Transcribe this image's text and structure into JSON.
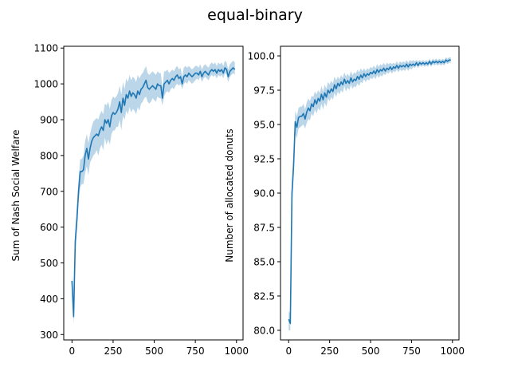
{
  "figure": {
    "title": "equal-binary"
  },
  "colors": {
    "line": "#1f77b4",
    "band": "#1f77b4",
    "axes": "#000000",
    "background": "#ffffff"
  },
  "chart_data": [
    {
      "type": "line",
      "title": "",
      "xlabel": "",
      "ylabel": "Sum of Nash Social Welfare",
      "xlim": [
        -50,
        1040
      ],
      "ylim": [
        285,
        1105
      ],
      "xticks": [
        0,
        250,
        500,
        750,
        1000
      ],
      "xtick_labels": [
        "0",
        "250",
        "500",
        "750",
        "1000"
      ],
      "yticks": [
        300,
        400,
        500,
        600,
        700,
        800,
        900,
        1000,
        1100
      ],
      "ytick_labels": [
        "300",
        "400",
        "500",
        "600",
        "700",
        "800",
        "900",
        "1000",
        "1100"
      ],
      "grid": false,
      "legend": "none",
      "series": [
        {
          "x": [
            0,
            10,
            20,
            30,
            40,
            50,
            60,
            70,
            80,
            90,
            100,
            110,
            120,
            130,
            140,
            150,
            160,
            170,
            180,
            190,
            200,
            210,
            220,
            230,
            240,
            250,
            260,
            270,
            280,
            290,
            300,
            310,
            320,
            330,
            340,
            350,
            360,
            370,
            380,
            390,
            400,
            410,
            420,
            430,
            440,
            450,
            460,
            470,
            480,
            490,
            500,
            510,
            520,
            530,
            540,
            550,
            560,
            570,
            580,
            590,
            600,
            610,
            620,
            630,
            640,
            650,
            660,
            670,
            680,
            690,
            700,
            710,
            720,
            730,
            740,
            750,
            760,
            770,
            780,
            790,
            800,
            810,
            820,
            830,
            840,
            850,
            860,
            870,
            880,
            890,
            900,
            910,
            920,
            930,
            940,
            950,
            960,
            970,
            980,
            990
          ],
          "y": [
            450,
            350,
            560,
            620,
            700,
            755,
            755,
            760,
            800,
            820,
            790,
            820,
            840,
            850,
            855,
            860,
            855,
            870,
            880,
            870,
            900,
            890,
            900,
            880,
            910,
            920,
            915,
            920,
            930,
            950,
            920,
            960,
            940,
            970,
            960,
            980,
            965,
            975,
            970,
            960,
            980,
            970,
            985,
            990,
            1000,
            1010,
            990,
            985,
            990,
            995,
            990,
            985,
            1000,
            995,
            995,
            960,
            1000,
            1005,
            1010,
            1000,
            1010,
            1015,
            1010,
            1020,
            1025,
            1015,
            1020,
            1000,
            1020,
            1025,
            1020,
            1030,
            1025,
            1020,
            1025,
            1030,
            1030,
            1025,
            1035,
            1020,
            1030,
            1035,
            1030,
            1025,
            1035,
            1040,
            1035,
            1040,
            1030,
            1040,
            1035,
            1040,
            1030,
            1045,
            1040,
            1020,
            1035,
            1040,
            1045,
            1040
          ],
          "lower": [
            410,
            330,
            520,
            590,
            670,
            710,
            720,
            720,
            750,
            770,
            745,
            780,
            790,
            800,
            805,
            815,
            800,
            820,
            830,
            815,
            850,
            830,
            845,
            830,
            860,
            870,
            870,
            880,
            880,
            900,
            870,
            910,
            900,
            925,
            915,
            935,
            920,
            930,
            925,
            915,
            935,
            925,
            945,
            950,
            960,
            965,
            950,
            945,
            950,
            960,
            955,
            950,
            965,
            960,
            960,
            940,
            965,
            975,
            980,
            975,
            985,
            990,
            985,
            995,
            1000,
            995,
            1000,
            985,
            1000,
            1005,
            1000,
            1010,
            1005,
            1000,
            1005,
            1010,
            1015,
            1010,
            1020,
            1005,
            1015,
            1020,
            1015,
            1010,
            1020,
            1025,
            1020,
            1025,
            1015,
            1025,
            1020,
            1025,
            1015,
            1030,
            1025,
            1005,
            1020,
            1025,
            1030,
            1025
          ],
          "upper": [
            470,
            380,
            600,
            660,
            730,
            790,
            790,
            800,
            840,
            860,
            835,
            860,
            880,
            895,
            900,
            905,
            900,
            915,
            925,
            915,
            945,
            940,
            950,
            930,
            955,
            965,
            960,
            965,
            975,
            995,
            970,
            1005,
            985,
            1015,
            1005,
            1025,
            1010,
            1020,
            1015,
            1005,
            1025,
            1015,
            1025,
            1030,
            1040,
            1050,
            1030,
            1025,
            1030,
            1035,
            1030,
            1025,
            1035,
            1030,
            1030,
            990,
            1035,
            1035,
            1040,
            1030,
            1035,
            1040,
            1035,
            1045,
            1050,
            1040,
            1045,
            1020,
            1045,
            1050,
            1045,
            1050,
            1045,
            1040,
            1045,
            1050,
            1050,
            1045,
            1055,
            1040,
            1050,
            1055,
            1050,
            1045,
            1055,
            1060,
            1055,
            1060,
            1050,
            1060,
            1055,
            1060,
            1050,
            1065,
            1060,
            1040,
            1055,
            1060,
            1065,
            1060
          ]
        }
      ]
    },
    {
      "type": "line",
      "title": "",
      "xlabel": "",
      "ylabel": "Number of allocated donuts",
      "xlim": [
        -50,
        1040
      ],
      "ylim": [
        79.3,
        100.7
      ],
      "xticks": [
        0,
        250,
        500,
        750,
        1000
      ],
      "xtick_labels": [
        "0",
        "250",
        "500",
        "750",
        "1000"
      ],
      "yticks": [
        80.0,
        82.5,
        85.0,
        87.5,
        90.0,
        92.5,
        95.0,
        97.5,
        100.0
      ],
      "ytick_labels": [
        "80.0",
        "82.5",
        "85.0",
        "87.5",
        "90.0",
        "92.5",
        "95.0",
        "97.5",
        "100.0"
      ],
      "grid": false,
      "legend": "none",
      "series": [
        {
          "x": [
            0,
            10,
            20,
            30,
            40,
            50,
            60,
            70,
            80,
            90,
            100,
            110,
            120,
            130,
            140,
            150,
            160,
            170,
            180,
            190,
            200,
            210,
            220,
            230,
            240,
            250,
            260,
            270,
            280,
            290,
            300,
            310,
            320,
            330,
            340,
            350,
            360,
            370,
            380,
            390,
            400,
            410,
            420,
            430,
            440,
            450,
            460,
            470,
            480,
            490,
            500,
            510,
            520,
            530,
            540,
            550,
            560,
            570,
            580,
            590,
            600,
            610,
            620,
            630,
            640,
            650,
            660,
            670,
            680,
            690,
            700,
            710,
            720,
            730,
            740,
            750,
            760,
            770,
            780,
            790,
            800,
            810,
            820,
            830,
            840,
            850,
            860,
            870,
            880,
            890,
            900,
            910,
            920,
            930,
            940,
            950,
            960,
            970,
            980,
            990
          ],
          "y": [
            80.8,
            80.5,
            90.0,
            92.0,
            95.2,
            94.8,
            95.5,
            95.6,
            95.6,
            95.8,
            95.4,
            95.9,
            96.2,
            96.0,
            96.5,
            96.3,
            96.8,
            96.5,
            96.9,
            96.7,
            97.2,
            96.8,
            97.3,
            97.0,
            97.5,
            97.3,
            97.6,
            97.4,
            97.9,
            97.6,
            98.0,
            97.8,
            98.1,
            97.9,
            98.3,
            98.0,
            98.2,
            98.0,
            98.4,
            98.1,
            98.3,
            98.2,
            98.5,
            98.3,
            98.6,
            98.4,
            98.7,
            98.5,
            98.7,
            98.6,
            98.8,
            98.7,
            98.9,
            98.7,
            99.0,
            98.8,
            99.0,
            98.9,
            99.1,
            98.9,
            99.1,
            99.0,
            99.2,
            99.0,
            99.2,
            99.1,
            99.3,
            99.1,
            99.3,
            99.2,
            99.3,
            99.2,
            99.4,
            99.2,
            99.4,
            99.3,
            99.4,
            99.3,
            99.5,
            99.3,
            99.5,
            99.4,
            99.5,
            99.4,
            99.5,
            99.4,
            99.6,
            99.4,
            99.6,
            99.5,
            99.6,
            99.5,
            99.6,
            99.5,
            99.6,
            99.5,
            99.7,
            99.6,
            99.7,
            99.7
          ],
          "lower": [
            80.0,
            80.0,
            89.0,
            91.0,
            94.3,
            94.0,
            94.7,
            94.8,
            94.9,
            95.0,
            94.7,
            95.1,
            95.4,
            95.3,
            95.8,
            95.6,
            96.1,
            95.8,
            96.2,
            96.0,
            96.5,
            96.1,
            96.6,
            96.3,
            96.9,
            96.7,
            97.0,
            96.8,
            97.3,
            97.0,
            97.4,
            97.2,
            97.5,
            97.3,
            97.8,
            97.4,
            97.7,
            97.5,
            97.9,
            97.6,
            97.8,
            97.7,
            98.0,
            97.8,
            98.1,
            98.0,
            98.3,
            98.1,
            98.3,
            98.2,
            98.4,
            98.3,
            98.5,
            98.3,
            98.6,
            98.4,
            98.6,
            98.5,
            98.7,
            98.6,
            98.8,
            98.7,
            98.9,
            98.7,
            98.9,
            98.8,
            99.0,
            98.8,
            99.0,
            98.9,
            99.0,
            98.9,
            99.1,
            98.9,
            99.1,
            99.0,
            99.2,
            99.1,
            99.3,
            99.1,
            99.3,
            99.2,
            99.3,
            99.2,
            99.3,
            99.2,
            99.4,
            99.2,
            99.4,
            99.3,
            99.4,
            99.3,
            99.4,
            99.3,
            99.4,
            99.3,
            99.5,
            99.4,
            99.5,
            99.5
          ],
          "upper": [
            81.4,
            81.2,
            91.0,
            93.0,
            96.0,
            95.6,
            96.2,
            96.3,
            96.3,
            96.5,
            96.1,
            96.6,
            96.9,
            96.7,
            97.1,
            97.0,
            97.4,
            97.2,
            97.5,
            97.3,
            97.8,
            97.4,
            97.9,
            97.6,
            98.1,
            97.9,
            98.2,
            98.0,
            98.5,
            98.2,
            98.5,
            98.3,
            98.6,
            98.4,
            98.8,
            98.5,
            98.7,
            98.5,
            98.9,
            98.6,
            98.8,
            98.7,
            99.0,
            98.8,
            99.1,
            98.9,
            99.1,
            98.9,
            99.1,
            99.0,
            99.2,
            99.1,
            99.3,
            99.1,
            99.4,
            99.2,
            99.4,
            99.3,
            99.5,
            99.3,
            99.5,
            99.4,
            99.5,
            99.4,
            99.5,
            99.4,
            99.6,
            99.4,
            99.6,
            99.5,
            99.6,
            99.5,
            99.7,
            99.5,
            99.7,
            99.6,
            99.7,
            99.6,
            99.7,
            99.6,
            99.7,
            99.6,
            99.7,
            99.6,
            99.7,
            99.6,
            99.8,
            99.6,
            99.8,
            99.7,
            99.8,
            99.7,
            99.8,
            99.7,
            99.8,
            99.7,
            99.9,
            99.8,
            99.9,
            99.9
          ]
        }
      ]
    }
  ]
}
